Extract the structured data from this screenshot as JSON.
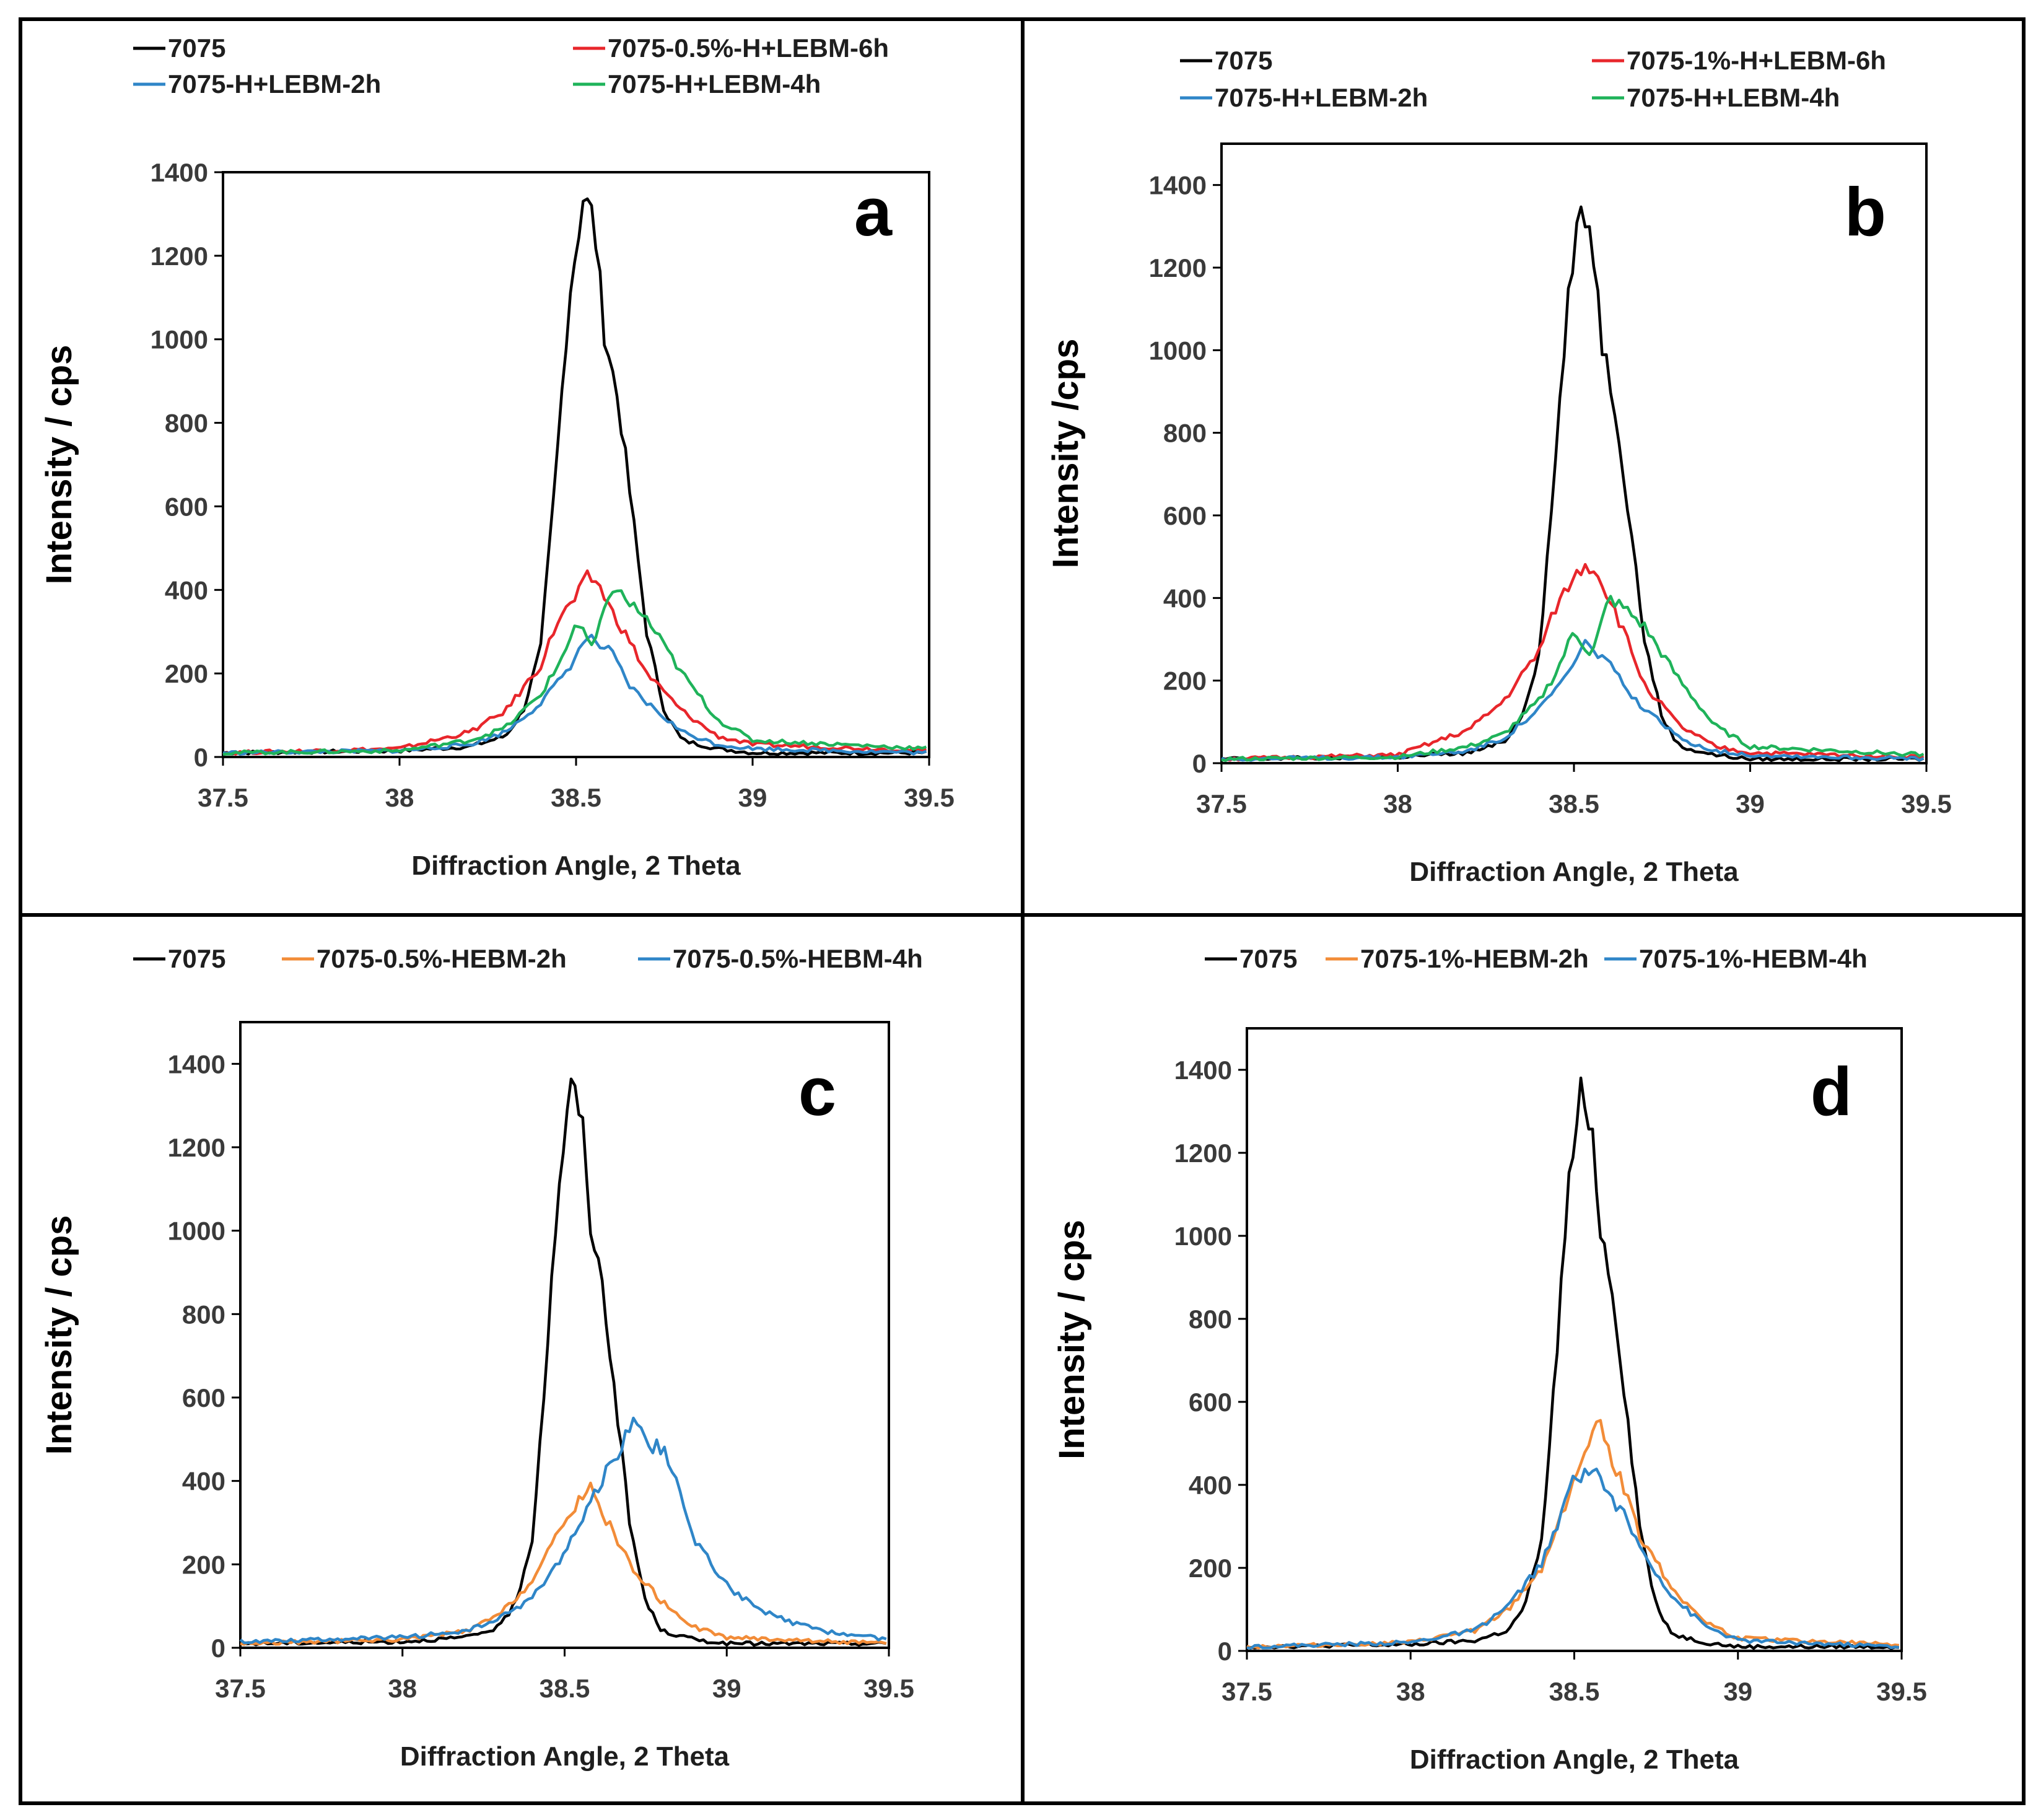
{
  "chart_data": [
    {
      "panel": "a",
      "type": "line",
      "xlabel": "Diffraction Angle, 2 Theta",
      "ylabel": "Intensity / cps",
      "xlim": [
        37.5,
        39.5
      ],
      "ylim": [
        0,
        1400
      ],
      "x_ticks": [
        "37.5",
        "38",
        "38.5",
        "39",
        "39.5"
      ],
      "y_ticks": [
        "0",
        "200",
        "400",
        "600",
        "800",
        "1000",
        "1200",
        "1400"
      ],
      "grid": false,
      "legend": "top",
      "series": [
        {
          "name": "7075",
          "color": "#000000",
          "x": [
            37.5,
            38.0,
            38.2,
            38.3,
            38.35,
            38.4,
            38.44,
            38.48,
            38.52,
            38.55,
            38.58,
            38.62,
            38.66,
            38.7,
            38.75,
            38.8,
            38.9,
            39.0,
            39.5
          ],
          "y": [
            10,
            15,
            25,
            50,
            110,
            260,
            650,
            1100,
            1340,
            1290,
            1020,
            850,
            580,
            300,
            110,
            40,
            20,
            10,
            10
          ]
        },
        {
          "name": "7075-0.5%-H+LEBM-6h",
          "color": "#e8262b",
          "x": [
            37.5,
            38.0,
            38.2,
            38.3,
            38.4,
            38.45,
            38.5,
            38.53,
            38.56,
            38.6,
            38.65,
            38.7,
            38.8,
            38.9,
            39.0,
            39.5
          ],
          "y": [
            10,
            20,
            60,
            110,
            220,
            330,
            380,
            430,
            420,
            350,
            280,
            200,
            110,
            50,
            30,
            15
          ]
        },
        {
          "name": "7075-H+LEBM-2h",
          "color": "#2f86c8",
          "x": [
            37.5,
            38.0,
            38.2,
            38.3,
            38.4,
            38.45,
            38.5,
            38.53,
            38.56,
            38.6,
            38.65,
            38.7,
            38.8,
            38.9,
            39.0,
            39.5
          ],
          "y": [
            10,
            15,
            30,
            60,
            130,
            180,
            240,
            290,
            270,
            250,
            170,
            130,
            60,
            30,
            20,
            10
          ]
        },
        {
          "name": "7075-H+LEBM-4h",
          "color": "#1fb35a",
          "x": [
            37.5,
            38.0,
            38.2,
            38.3,
            38.4,
            38.45,
            38.5,
            38.55,
            38.6,
            38.65,
            38.7,
            38.8,
            38.9,
            39.0,
            39.5
          ],
          "y": [
            10,
            15,
            40,
            70,
            150,
            220,
            320,
            260,
            410,
            370,
            330,
            200,
            90,
            40,
            20
          ]
        }
      ]
    },
    {
      "panel": "b",
      "type": "line",
      "xlabel": "Diffraction Angle, 2 Theta",
      "ylabel": "Intensity /cps",
      "xlim": [
        37.5,
        39.5
      ],
      "ylim": [
        0,
        1500
      ],
      "x_ticks": [
        "37.5",
        "38",
        "38.5",
        "39",
        "39.5"
      ],
      "y_ticks": [
        "0",
        "200",
        "400",
        "600",
        "800",
        "1000",
        "1200",
        "1400"
      ],
      "grid": false,
      "legend": "top",
      "series": [
        {
          "name": "7075",
          "color": "#000000",
          "x": [
            37.5,
            38.0,
            38.2,
            38.3,
            38.35,
            38.4,
            38.44,
            38.48,
            38.52,
            38.55,
            38.58,
            38.62,
            38.66,
            38.7,
            38.75,
            38.8,
            38.9,
            39.0,
            39.5
          ],
          "y": [
            10,
            15,
            25,
            50,
            110,
            260,
            650,
            1100,
            1340,
            1290,
            1020,
            850,
            580,
            300,
            110,
            40,
            20,
            10,
            10
          ]
        },
        {
          "name": "7075-1%-H+LEBM-6h",
          "color": "#e8262b",
          "x": [
            37.5,
            38.0,
            38.2,
            38.3,
            38.4,
            38.45,
            38.5,
            38.53,
            38.56,
            38.6,
            38.65,
            38.7,
            38.8,
            38.9,
            39.0,
            39.5
          ],
          "y": [
            10,
            20,
            80,
            150,
            270,
            380,
            450,
            480,
            470,
            400,
            300,
            190,
            90,
            40,
            25,
            15
          ]
        },
        {
          "name": "7075-H+LEBM-2h",
          "color": "#2f86c8",
          "x": [
            37.5,
            38.0,
            38.2,
            38.3,
            38.4,
            38.45,
            38.5,
            38.53,
            38.56,
            38.6,
            38.65,
            38.7,
            38.8,
            38.9,
            39.0,
            39.5
          ],
          "y": [
            10,
            15,
            30,
            60,
            130,
            180,
            240,
            290,
            270,
            250,
            170,
            130,
            60,
            30,
            20,
            10
          ]
        },
        {
          "name": "7075-H+LEBM-4h",
          "color": "#1fb35a",
          "x": [
            37.5,
            38.0,
            38.2,
            38.3,
            38.4,
            38.45,
            38.5,
            38.55,
            38.6,
            38.65,
            38.7,
            38.8,
            38.9,
            39.0,
            39.5
          ],
          "y": [
            10,
            15,
            40,
            70,
            150,
            220,
            320,
            260,
            400,
            370,
            330,
            200,
            90,
            40,
            20
          ]
        }
      ]
    },
    {
      "panel": "c",
      "type": "line",
      "xlabel": "Diffraction Angle, 2 Theta",
      "ylabel": "Intensity / cps",
      "xlim": [
        37.5,
        39.5
      ],
      "ylim": [
        0,
        1500
      ],
      "x_ticks": [
        "37.5",
        "38",
        "38.5",
        "39",
        "39.5"
      ],
      "y_ticks": [
        "0",
        "200",
        "400",
        "600",
        "800",
        "1000",
        "1200",
        "1400"
      ],
      "grid": false,
      "legend": "top",
      "series": [
        {
          "name": "7075",
          "color": "#000000",
          "x": [
            37.5,
            38.0,
            38.2,
            38.3,
            38.35,
            38.4,
            38.44,
            38.48,
            38.52,
            38.55,
            38.58,
            38.62,
            38.66,
            38.7,
            38.75,
            38.8,
            38.9,
            39.0,
            39.5
          ],
          "y": [
            10,
            15,
            25,
            50,
            110,
            260,
            650,
            1100,
            1340,
            1290,
            1020,
            850,
            580,
            300,
            110,
            40,
            20,
            10,
            10
          ]
        },
        {
          "name": "7075-0.5%-HEBM-2h",
          "color": "#f28c38",
          "x": [
            37.5,
            38.0,
            38.2,
            38.3,
            38.4,
            38.45,
            38.5,
            38.55,
            38.58,
            38.6,
            38.65,
            38.7,
            38.8,
            38.9,
            39.0,
            39.5
          ],
          "y": [
            10,
            20,
            40,
            80,
            160,
            230,
            300,
            360,
            400,
            340,
            280,
            200,
            110,
            50,
            25,
            10
          ]
        },
        {
          "name": "7075-0.5%-HEBM-4h",
          "color": "#2f86c8",
          "x": [
            37.5,
            38.0,
            38.2,
            38.3,
            38.4,
            38.45,
            38.5,
            38.55,
            38.6,
            38.65,
            38.7,
            38.72,
            38.75,
            38.8,
            38.85,
            38.9,
            39.0,
            39.1,
            39.2,
            39.3,
            39.5
          ],
          "y": [
            15,
            25,
            40,
            70,
            120,
            170,
            230,
            300,
            380,
            450,
            520,
            560,
            490,
            480,
            380,
            260,
            150,
            90,
            60,
            40,
            20
          ]
        }
      ]
    },
    {
      "panel": "d",
      "type": "line",
      "xlabel": "Diffraction Angle, 2 Theta",
      "ylabel": "Intensity / cps",
      "xlim": [
        37.5,
        39.5
      ],
      "ylim": [
        0,
        1500
      ],
      "x_ticks": [
        "37.5",
        "38",
        "38.5",
        "39",
        "39.5"
      ],
      "y_ticks": [
        "0",
        "200",
        "400",
        "600",
        "800",
        "1000",
        "1200",
        "1400"
      ],
      "grid": false,
      "legend": "top",
      "series": [
        {
          "name": "7075",
          "color": "#000000",
          "x": [
            37.5,
            38.0,
            38.2,
            38.3,
            38.35,
            38.4,
            38.44,
            38.48,
            38.52,
            38.55,
            38.58,
            38.62,
            38.66,
            38.7,
            38.75,
            38.8,
            38.9,
            39.0,
            39.5
          ],
          "y": [
            10,
            15,
            25,
            50,
            110,
            260,
            650,
            1100,
            1340,
            1290,
            1020,
            850,
            580,
            300,
            110,
            40,
            20,
            10,
            10
          ]
        },
        {
          "name": "7075-1%-HEBM-2h",
          "color": "#f28c38",
          "x": [
            37.5,
            38.0,
            38.2,
            38.3,
            38.4,
            38.45,
            38.5,
            38.55,
            38.58,
            38.62,
            38.66,
            38.7,
            38.8,
            38.9,
            39.0,
            39.5
          ],
          "y": [
            10,
            20,
            50,
            100,
            200,
            300,
            420,
            500,
            560,
            450,
            380,
            280,
            150,
            70,
            30,
            15
          ]
        },
        {
          "name": "7075-1%-HEBM-4h",
          "color": "#2f86c8",
          "x": [
            37.5,
            38.0,
            38.2,
            38.3,
            38.4,
            38.45,
            38.5,
            38.53,
            38.56,
            38.6,
            38.65,
            38.7,
            38.8,
            38.9,
            39.0,
            39.5
          ],
          "y": [
            10,
            20,
            50,
            110,
            210,
            300,
            430,
            420,
            450,
            380,
            330,
            250,
            130,
            60,
            25,
            10
          ]
        }
      ]
    }
  ]
}
